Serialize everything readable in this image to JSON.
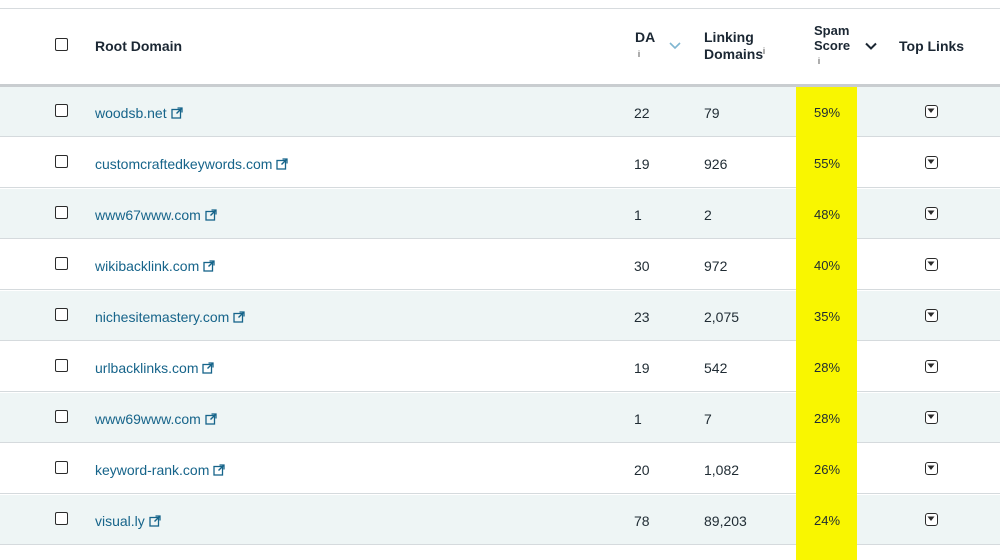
{
  "table": {
    "headers": {
      "root_domain": "Root Domain",
      "da": "DA",
      "da_info": "i",
      "linking_line1": "Linking",
      "linking_line2": "Domains",
      "linking_info": "i",
      "spam_line1": "Spam",
      "spam_line2": "Score",
      "spam_info": "i",
      "top_links": "Top Links"
    },
    "highlight_color": "#f9f600",
    "link_color": "#16648a",
    "rows": [
      {
        "domain": "woodsb.net",
        "da": "22",
        "linking": "79",
        "spam": "59%"
      },
      {
        "domain": "customcraftedkeywords.com",
        "da": "19",
        "linking": "926",
        "spam": "55%"
      },
      {
        "domain": "www67www.com",
        "da": "1",
        "linking": "2",
        "spam": "48%"
      },
      {
        "domain": "wikibacklink.com",
        "da": "30",
        "linking": "972",
        "spam": "40%"
      },
      {
        "domain": "nichesitemastery.com",
        "da": "23",
        "linking": "2,075",
        "spam": "35%"
      },
      {
        "domain": "urlbacklinks.com",
        "da": "19",
        "linking": "542",
        "spam": "28%"
      },
      {
        "domain": "www69www.com",
        "da": "1",
        "linking": "7",
        "spam": "28%"
      },
      {
        "domain": "keyword-rank.com",
        "da": "20",
        "linking": "1,082",
        "spam": "26%"
      },
      {
        "domain": "visual.ly",
        "da": "78",
        "linking": "89,203",
        "spam": "24%"
      }
    ]
  }
}
